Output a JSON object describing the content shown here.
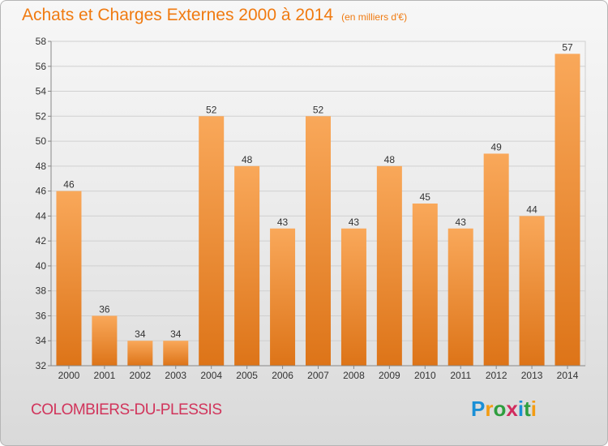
{
  "header": {
    "title": "Achats et Charges Externes 2000 à 2014",
    "unit": "(en milliers d'€)"
  },
  "footer": {
    "city": "COLOMBIERS-DU-PLESSIS"
  },
  "logo": {
    "letters": [
      "P",
      "r",
      "o",
      "x",
      "i",
      "t",
      "i"
    ],
    "colors": [
      "#1a8fd6",
      "#f39c12",
      "#2e9e3e",
      "#d12b5e",
      "#1a8fd6",
      "#2e9e3e",
      "#f39c12"
    ]
  },
  "colors": {
    "bar_light": "#f9a85a",
    "bar_dark": "#dd7418",
    "text": "#f07a10"
  },
  "chart_data": {
    "type": "bar",
    "title": "Achats et Charges Externes 2000 à 2014",
    "subtitle": "(en milliers d'€)",
    "categories": [
      "2000",
      "2001",
      "2002",
      "2003",
      "2004",
      "2005",
      "2006",
      "2007",
      "2008",
      "2009",
      "2010",
      "2011",
      "2012",
      "2013",
      "2014"
    ],
    "values": [
      46,
      36,
      34,
      34,
      52,
      48,
      43,
      52,
      43,
      48,
      45,
      43,
      49,
      44,
      57
    ],
    "ylim": [
      32,
      58
    ],
    "yticks": [
      32,
      34,
      36,
      38,
      40,
      42,
      44,
      46,
      48,
      50,
      52,
      54,
      56,
      58
    ],
    "grid": true,
    "data_labels": true
  }
}
